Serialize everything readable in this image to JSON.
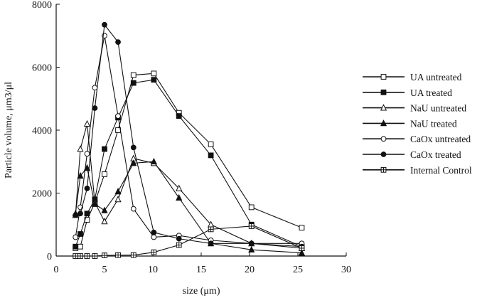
{
  "chart_data": {
    "type": "line",
    "xlabel": "size (μm)",
    "ylabel": "Particle volume, μm3/μl",
    "xlim": [
      0,
      30
    ],
    "ylim": [
      0,
      8000
    ],
    "xticks": [
      0,
      5,
      10,
      15,
      20,
      25,
      30
    ],
    "yticks": [
      0,
      2000,
      4000,
      6000,
      8000
    ],
    "grid": false,
    "legend_position": "right",
    "series": [
      {
        "name": "UA untreated",
        "marker": "square-open",
        "x": [
          2.0,
          2.5,
          3.2,
          4.0,
          5.0,
          6.4,
          8.0,
          10.1,
          12.7,
          16.0,
          20.2,
          25.4
        ],
        "y": [
          250,
          300,
          1150,
          1700,
          2600,
          4000,
          5750,
          5800,
          4550,
          3550,
          1550,
          900
        ]
      },
      {
        "name": "UA treated",
        "marker": "square-filled",
        "x": [
          2.0,
          2.5,
          3.2,
          4.0,
          5.0,
          6.4,
          8.0,
          10.1,
          12.7,
          16.0,
          20.2,
          25.4
        ],
        "y": [
          300,
          700,
          1350,
          1800,
          3400,
          4400,
          5500,
          5600,
          4450,
          3200,
          1000,
          300
        ]
      },
      {
        "name": "NaU untreated",
        "marker": "triangle-open",
        "x": [
          2.0,
          2.5,
          3.2,
          4.0,
          5.0,
          6.4,
          8.0,
          10.1,
          12.7,
          16.0,
          20.2,
          25.4
        ],
        "y": [
          1300,
          3400,
          4200,
          1700,
          1100,
          1800,
          3100,
          2950,
          2150,
          1000,
          400,
          250
        ]
      },
      {
        "name": "NaU treated",
        "marker": "triangle-filled",
        "x": [
          2.0,
          2.5,
          3.2,
          4.0,
          5.0,
          6.4,
          8.0,
          10.1,
          12.7,
          16.0,
          20.2,
          25.4
        ],
        "y": [
          1350,
          2550,
          2800,
          1650,
          1450,
          2050,
          2950,
          3000,
          1850,
          400,
          200,
          100
        ]
      },
      {
        "name": "CaOx untreated",
        "marker": "circle-open",
        "x": [
          2.0,
          2.5,
          3.2,
          4.0,
          5.0,
          6.4,
          8.0,
          10.1,
          12.7,
          16.0,
          20.2,
          25.4
        ],
        "y": [
          600,
          1550,
          3250,
          5350,
          7000,
          4450,
          1500,
          600,
          650,
          500,
          400,
          400
        ]
      },
      {
        "name": "CaOx treated",
        "marker": "circle-filled",
        "x": [
          2.0,
          2.5,
          3.2,
          4.0,
          5.0,
          6.4,
          8.0,
          10.1,
          12.7,
          16.0,
          20.2,
          25.4
        ],
        "y": [
          1300,
          1350,
          2150,
          4700,
          7350,
          6800,
          3450,
          750,
          550,
          400,
          400,
          300
        ]
      },
      {
        "name": "Internal Control",
        "marker": "square-crossed",
        "x": [
          2.0,
          2.5,
          3.2,
          4.0,
          5.0,
          6.4,
          8.0,
          10.1,
          12.7,
          16.0,
          20.2,
          25.4
        ],
        "y": [
          0,
          0,
          0,
          0,
          20,
          30,
          30,
          120,
          350,
          850,
          950,
          250
        ]
      }
    ]
  }
}
